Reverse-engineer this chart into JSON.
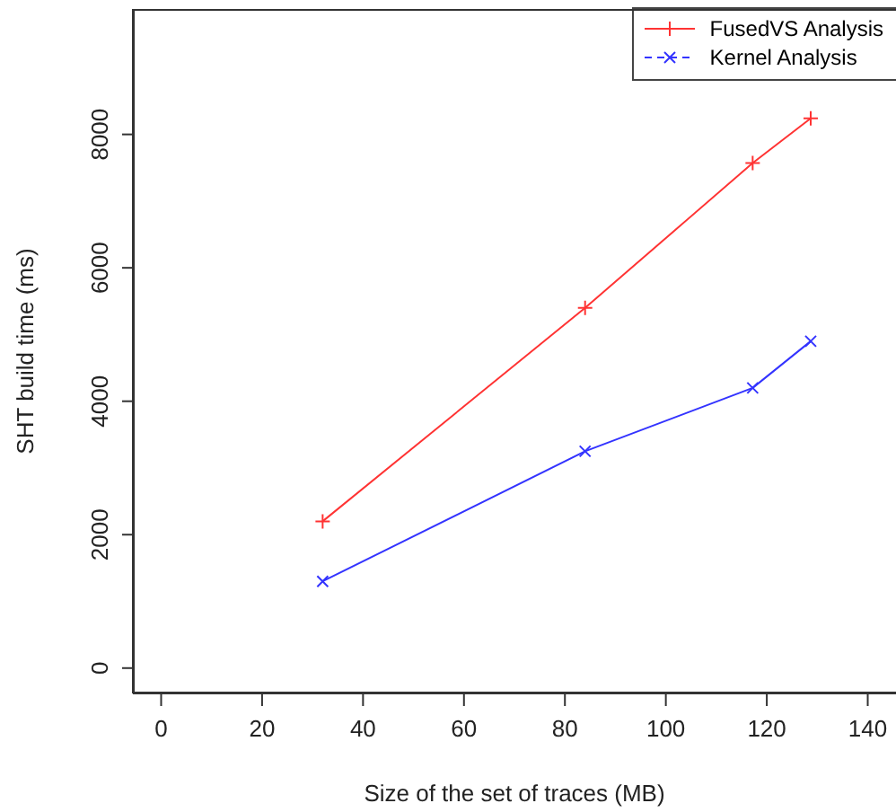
{
  "chart_data": {
    "type": "line",
    "xlabel": "Size of the set of traces (MB)",
    "ylabel": "SHT build time (ms)",
    "series": [
      {
        "name": "FusedVS Analysis",
        "color": "#ff3333",
        "marker": "plus",
        "x": [
          32,
          84,
          117.2,
          128.7
        ],
        "values": [
          2200,
          5400,
          7570,
          8240
        ]
      },
      {
        "name": "Kernel Analysis",
        "color": "#3333ff",
        "marker": "cross",
        "x": [
          32,
          84,
          117.2,
          128.7
        ],
        "values": [
          1300,
          3250,
          4200,
          4900
        ]
      }
    ],
    "xlim": [
      -5.6,
      145.6
    ],
    "xticks": [
      0,
      20,
      40,
      60,
      80,
      100,
      120,
      140
    ],
    "ylim": [
      -380,
      9880
    ],
    "yticks": [
      0,
      2000,
      4000,
      6000,
      8000
    ],
    "grid": false,
    "legend": "top right",
    "line_style": "solid"
  }
}
